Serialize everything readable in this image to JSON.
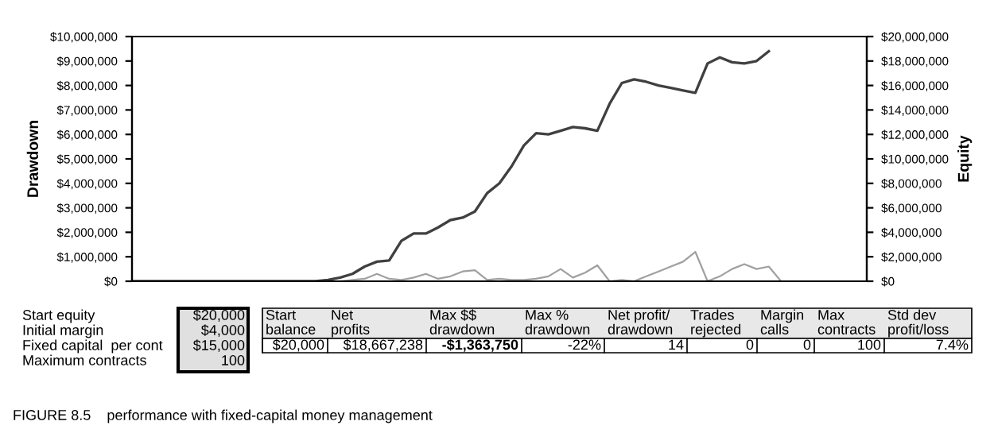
{
  "chart_data": [
    {
      "type": "line",
      "ylabel": "Drawdown",
      "y2label": "Equity",
      "categories": [
        null,
        null,
        null,
        null,
        null,
        null,
        null,
        null,
        null,
        null,
        null,
        null,
        null,
        null,
        null,
        null,
        null,
        null,
        null,
        null,
        null,
        null,
        null,
        null,
        null,
        null,
        null,
        null,
        null,
        null,
        null,
        null,
        null,
        null,
        null,
        null,
        null,
        null,
        null,
        null,
        null,
        null,
        null,
        null,
        null,
        null,
        null,
        null,
        null,
        null,
        null,
        null,
        null,
        null,
        null,
        null,
        null,
        null,
        null,
        null,
        null
      ],
      "series": [
        {
          "color": "#a0a0a0",
          "values": [
            0,
            0,
            0,
            0,
            0,
            0,
            0,
            0,
            0,
            0,
            0,
            0,
            0,
            0,
            0,
            0,
            0,
            0,
            50000,
            100000,
            300000,
            100000,
            50000,
            150000,
            300000,
            100000,
            200000,
            400000,
            450000,
            50000,
            100000,
            50000,
            50000,
            100000,
            200000,
            500000,
            150000,
            350000,
            650000,
            0,
            50000,
            0,
            200000,
            400000,
            600000,
            800000,
            1200000,
            0,
            200000,
            500000,
            700000,
            500000,
            600000,
            0,
            null,
            null,
            null,
            null,
            null,
            null,
            null
          ]
        },
        {
          "color": "#404040",
          "axis": "y2",
          "values": [
            0,
            0,
            0,
            0,
            0,
            0,
            0,
            0,
            0,
            0,
            0,
            0,
            0,
            0,
            0,
            0,
            100000,
            300000,
            600000,
            1200000,
            1600000,
            1700000,
            3300000,
            3900000,
            3900000,
            4400000,
            5000000,
            5200000,
            5700000,
            7200000,
            8000000,
            9400000,
            11100000,
            12100000,
            12000000,
            12300000,
            12600000,
            12500000,
            12300000,
            14500000,
            16200000,
            16500000,
            16300000,
            16000000,
            15800000,
            15600000,
            15400000,
            17800000,
            18300000,
            17900000,
            17800000,
            18000000,
            18800000,
            null,
            null,
            null,
            null,
            null,
            null,
            null,
            null
          ]
        }
      ],
      "ylim": [
        0,
        10000000
      ],
      "yticks": [
        {
          "value": 0,
          "label": "$0"
        },
        {
          "value": 1000000,
          "label": "$1,000,000"
        },
        {
          "value": 2000000,
          "label": "$2,000,000"
        },
        {
          "value": 3000000,
          "label": "$3,000,000"
        },
        {
          "value": 4000000,
          "label": "$4,000,000"
        },
        {
          "value": 5000000,
          "label": "$5,000,000"
        },
        {
          "value": 6000000,
          "label": "$6,000,000"
        },
        {
          "value": 7000000,
          "label": "$7,000,000"
        },
        {
          "value": 8000000,
          "label": "$8,000,000"
        },
        {
          "value": 9000000,
          "label": "$9,000,000"
        },
        {
          "value": 10000000,
          "label": "$10,000,000"
        }
      ],
      "y2lim": [
        0,
        20000000
      ],
      "y2ticks": [
        {
          "value": 0,
          "label": "$0"
        },
        {
          "value": 2000000,
          "label": "$2,000,000"
        },
        {
          "value": 4000000,
          "label": "$4,000,000"
        },
        {
          "value": 6000000,
          "label": "$6,000,000"
        },
        {
          "value": 8000000,
          "label": "$8,000,000"
        },
        {
          "value": 10000000,
          "label": "$10,000,000"
        },
        {
          "value": 12000000,
          "label": "$12,000,000"
        },
        {
          "value": 14000000,
          "label": "$14,000,000"
        },
        {
          "value": 16000000,
          "label": "$16,000,000"
        },
        {
          "value": 18000000,
          "label": "$18,000,000"
        },
        {
          "value": 20000000,
          "label": "$20,000,000"
        }
      ],
      "grid": false,
      "tick_labels": "y"
    },
    {
      "type": "other",
      "annotations": [
        "Start equity",
        "$20,000",
        "Initial margin",
        "$4,000",
        "Fixed capital  per cont",
        "$15,000",
        "Maximum contracts",
        "100",
        "Start\nbalance",
        "Net\nprofits",
        "Max $$\ndrawdown",
        "Max %\ndrawdown",
        "Net profit/\ndrawdown",
        "Trades\nrejected",
        "Margin\ncalls",
        "Max\ncontracts",
        "Std dev\nprofit/loss",
        "$20,000",
        "$18,667,238",
        "-$1,363,750",
        "-22%",
        "14",
        "0",
        "0",
        "100",
        "7.4%",
        "FIGURE 8.5    performance with fixed-capital money management"
      ]
    }
  ]
}
